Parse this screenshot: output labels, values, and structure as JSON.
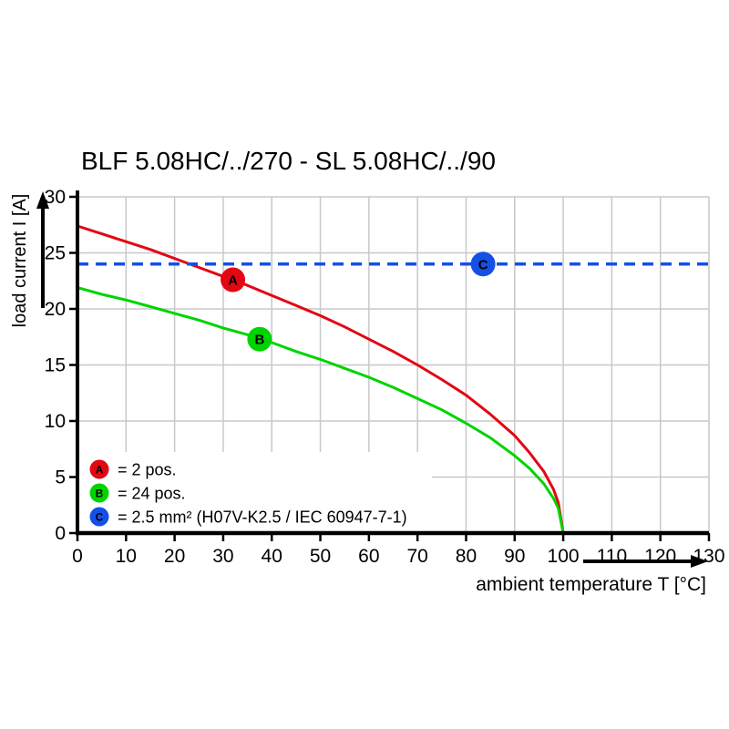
{
  "title": "BLF 5.08HC/../270 - SL 5.08HC/../90",
  "chart_data": {
    "type": "line",
    "title": "BLF 5.08HC/../270 - SL 5.08HC/../90",
    "xlabel": "ambient temperature T [°C]",
    "ylabel": "load current I [A]",
    "xlim": [
      0,
      130
    ],
    "ylim": [
      0,
      30
    ],
    "x_ticks": [
      0,
      10,
      20,
      30,
      40,
      50,
      60,
      70,
      80,
      90,
      100,
      110,
      120,
      130
    ],
    "y_ticks": [
      0,
      5,
      10,
      15,
      20,
      25,
      30
    ],
    "grid": true,
    "grid_color": "#c8c8c8",
    "axis_color": "#000000",
    "legend_position": "bottom-left",
    "series": [
      {
        "id": "A",
        "name": "derating-curve-2pos",
        "color": "#e30613",
        "style": "solid",
        "x": [
          0,
          5,
          10,
          15,
          20,
          25,
          30,
          35,
          40,
          45,
          50,
          55,
          60,
          65,
          70,
          75,
          80,
          85,
          90,
          93,
          96,
          98,
          99,
          100
        ],
        "y": [
          27.4,
          26.7,
          26.0,
          25.3,
          24.5,
          23.7,
          22.9,
          22.1,
          21.2,
          20.3,
          19.4,
          18.4,
          17.3,
          16.2,
          15.0,
          13.7,
          12.3,
          10.6,
          8.7,
          7.2,
          5.5,
          3.9,
          2.7,
          0
        ]
      },
      {
        "id": "B",
        "name": "derating-curve-24pos",
        "color": "#00d400",
        "style": "solid",
        "x": [
          0,
          5,
          10,
          15,
          20,
          25,
          30,
          35,
          40,
          45,
          50,
          55,
          60,
          65,
          70,
          75,
          80,
          85,
          90,
          93,
          96,
          98,
          99,
          100
        ],
        "y": [
          21.9,
          21.3,
          20.8,
          20.2,
          19.6,
          19.0,
          18.3,
          17.7,
          17.0,
          16.2,
          15.5,
          14.7,
          13.9,
          13.0,
          12.0,
          11.0,
          9.8,
          8.5,
          6.9,
          5.8,
          4.4,
          3.1,
          2.2,
          0
        ]
      },
      {
        "id": "C",
        "name": "conductor-current-limit",
        "color": "#1450e6",
        "style": "dashed",
        "x": [
          0,
          130
        ],
        "y": [
          24,
          24
        ]
      }
    ],
    "markers": [
      {
        "id": "A",
        "letter": "A",
        "x": 32,
        "y": 22.6,
        "color": "#e30613"
      },
      {
        "id": "B",
        "letter": "B",
        "x": 37.5,
        "y": 17.3,
        "color": "#00d400"
      },
      {
        "id": "C",
        "letter": "C",
        "x": 83.5,
        "y": 24,
        "color": "#1450e6"
      }
    ],
    "legend": [
      {
        "id": "A",
        "letter": "A",
        "color": "#e30613",
        "label": "= 2 pos."
      },
      {
        "id": "B",
        "letter": "B",
        "color": "#00d400",
        "label": "= 24 pos."
      },
      {
        "id": "C",
        "letter": "C",
        "color": "#1450e6",
        "label": "= 2.5 mm² (H07V-K2.5 / IEC 60947-7-1)"
      }
    ]
  }
}
